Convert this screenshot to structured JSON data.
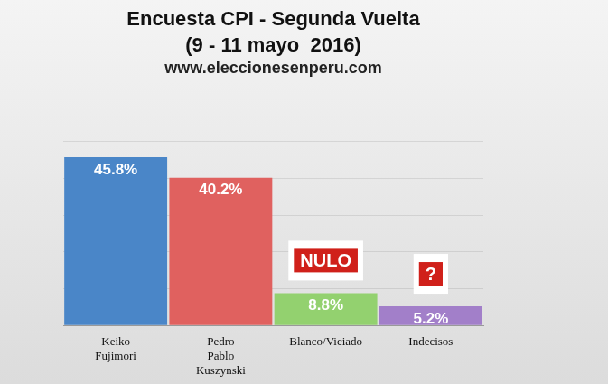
{
  "chart_data": {
    "type": "bar",
    "title": [
      "Encuesta CPI - Segunda Vuelta",
      "(9 - 11 mayo  2016)"
    ],
    "subtitle": "www.eleccionesenperu.com",
    "categories": [
      "Keiko Fujimori",
      "Pedro Pablo Kuszynski",
      "Blanco/Viciado",
      "Indecisos"
    ],
    "values": [
      45.8,
      40.2,
      8.8,
      5.2
    ],
    "value_labels": [
      "45.8%",
      "40.2%",
      "8.8%",
      "5.2%"
    ],
    "colors": [
      "#4a86c8",
      "#e0615f",
      "#93d16f",
      "#a27fc9"
    ],
    "annotations": [
      {
        "category": "Blanco/Viciado",
        "text": "NULO"
      },
      {
        "category": "Indecisos",
        "text": "?"
      }
    ],
    "data_labels": true,
    "ylim": [
      0,
      50
    ],
    "yticks": [
      0,
      10,
      20,
      30,
      40,
      50
    ],
    "grid": true,
    "tick_labels": "x"
  }
}
